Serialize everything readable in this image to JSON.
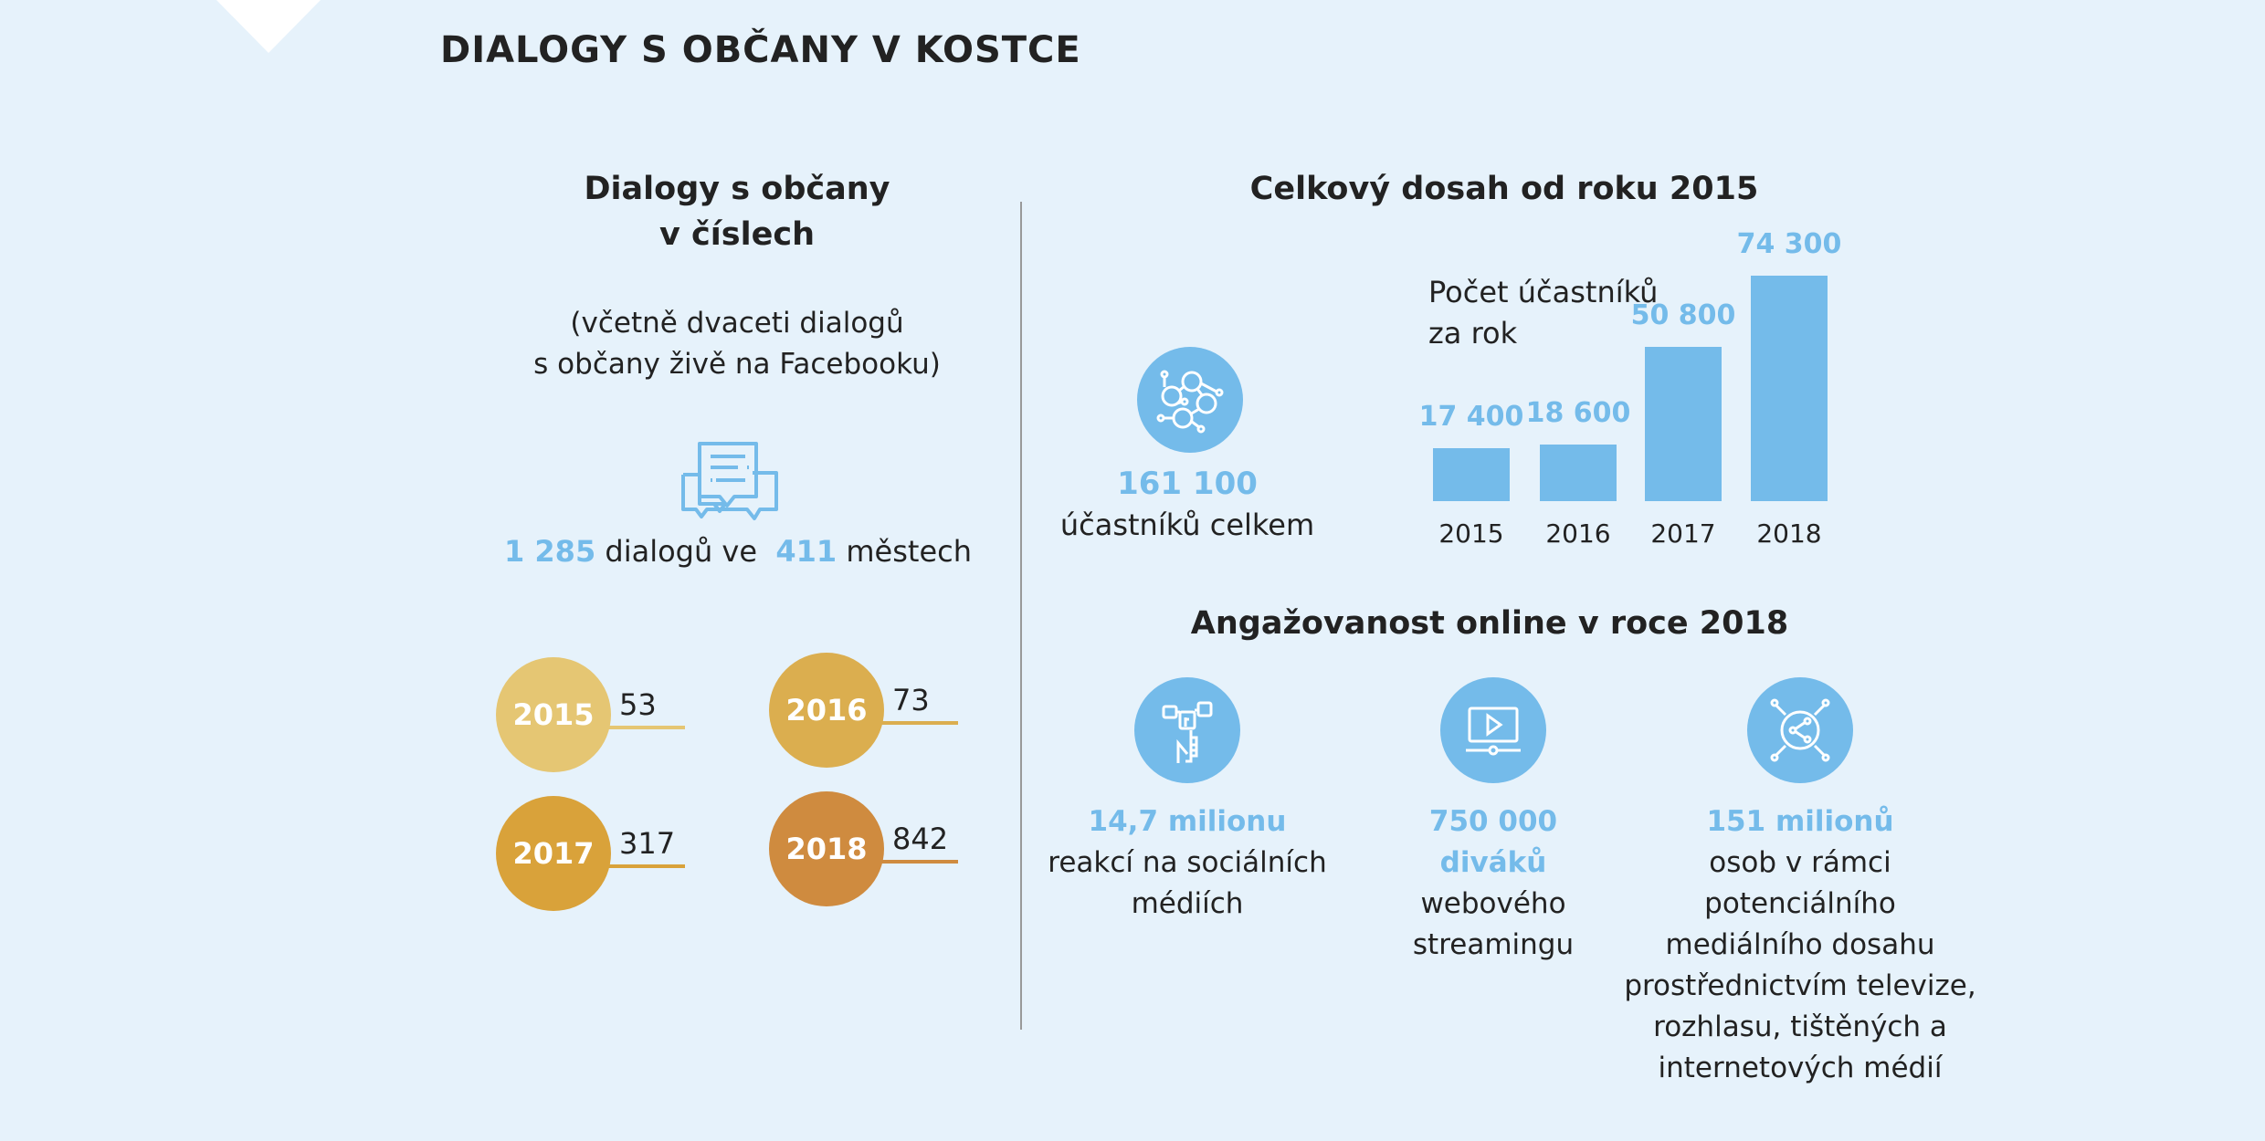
{
  "title": "DIALOGY S OBČANY V KOSTCE",
  "left": {
    "heading": [
      "Dialogy s občany",
      "v číslech"
    ],
    "subtitle": [
      "(včetně dvaceti dialogů",
      "s občany živě na Facebooku)"
    ],
    "icon": "chat-bubbles-icon",
    "dialogs_count": "1 285",
    "dialogs_text": "dialogů ve",
    "cities_count": "411",
    "cities_text": "městech",
    "years": [
      {
        "year": "2015",
        "value": "53",
        "color": "#e5c673"
      },
      {
        "year": "2016",
        "value": "73",
        "color": "#dbae4f"
      },
      {
        "year": "2017",
        "value": "317",
        "color": "#d9a23a"
      },
      {
        "year": "2018",
        "value": "842",
        "color": "#cf8b3f"
      }
    ]
  },
  "reach": {
    "heading": "Celkový dosah od roku 2015",
    "icon": "people-network-icon",
    "total": "161 100",
    "total_label": "účastníků celkem",
    "chart_label": [
      "Počet účastníků",
      "za rok"
    ]
  },
  "chart_data": {
    "type": "bar",
    "categories": [
      "2015",
      "2016",
      "2017",
      "2018"
    ],
    "values": [
      17400,
      18600,
      50800,
      74300
    ],
    "value_labels": [
      "17 400",
      "18 600",
      "50 800",
      "74 300"
    ],
    "title": "Počet účastníků za rok",
    "color": "#74bbea"
  },
  "online": {
    "heading": "Angažovanost online v roce 2018",
    "items": [
      {
        "icon": "social-media-icon",
        "highlight": [
          "14,7 milionu"
        ],
        "text": [
          "reakcí na sociálních",
          "médiích"
        ]
      },
      {
        "icon": "video-streaming-icon",
        "highlight": [
          "750 000",
          "diváků"
        ],
        "text": [
          "webového",
          "streamingu"
        ]
      },
      {
        "icon": "share-network-icon",
        "highlight": [
          "151 milionů"
        ],
        "text": [
          "osob v rámci",
          "potenciálního",
          "mediálního dosahu",
          "prostřednictvím televize,",
          "rozhlasu, tištěných a",
          "internetových médií"
        ]
      }
    ]
  },
  "colors": {
    "background": "#e6f2fb",
    "accent": "#74bbea"
  }
}
